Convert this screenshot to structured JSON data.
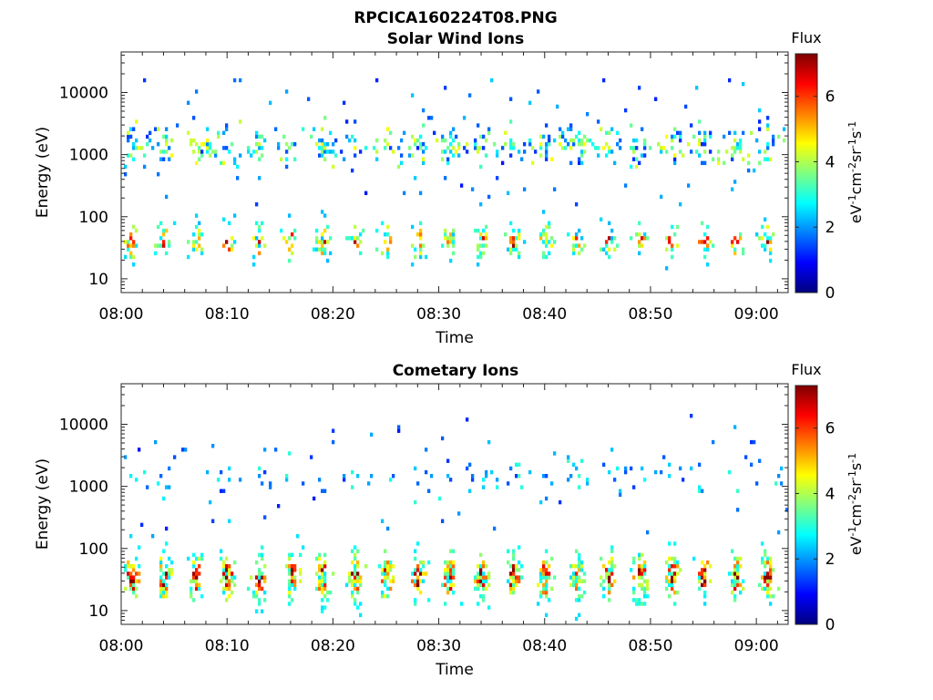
{
  "figure_title": "RPCICA160224T08.PNG",
  "chart_data": [
    {
      "type": "heatmap",
      "title": "Solar Wind Ions",
      "xlabel": "Time",
      "ylabel": "Energy (eV)",
      "x_ticks": [
        "08:00",
        "08:10",
        "08:20",
        "08:30",
        "08:40",
        "08:50",
        "09:00"
      ],
      "x_range_minutes": [
        0,
        63
      ],
      "y_scale": "log",
      "y_ticks": [
        "10",
        "100",
        "1000",
        "10000"
      ],
      "y_range": [
        6,
        45000
      ],
      "colorbar": {
        "label": "Flux",
        "units": "eV⁻¹cm⁻²sr⁻¹s⁻¹",
        "ticks": [
          "0",
          "2",
          "4",
          "6"
        ],
        "range": [
          0,
          7.3
        ]
      },
      "features": {
        "band_low_eV": [
          25,
          200
        ],
        "band_high_eV": [
          300,
          3000
        ],
        "pulse_period_minutes": 3.0,
        "peak_flux": 6.5,
        "seed": 7
      }
    },
    {
      "type": "heatmap",
      "title": "Cometary Ions",
      "xlabel": "Time",
      "ylabel": "Energy (eV)",
      "x_ticks": [
        "08:00",
        "08:10",
        "08:20",
        "08:30",
        "08:40",
        "08:50",
        "09:00"
      ],
      "x_range_minutes": [
        0,
        63
      ],
      "y_scale": "log",
      "y_ticks": [
        "10",
        "100",
        "1000",
        "10000"
      ],
      "y_range": [
        6,
        45000
      ],
      "colorbar": {
        "label": "Flux",
        "units": "eV⁻¹cm⁻²sr⁻¹s⁻¹",
        "ticks": [
          "0",
          "2",
          "4",
          "6"
        ],
        "range": [
          0,
          7.3
        ]
      },
      "features": {
        "band_low_eV": [
          15,
          250
        ],
        "band_high_eV": [
          400,
          3000
        ],
        "pulse_period_minutes": 3.0,
        "peak_flux": 7.0,
        "seed": 13
      }
    }
  ]
}
